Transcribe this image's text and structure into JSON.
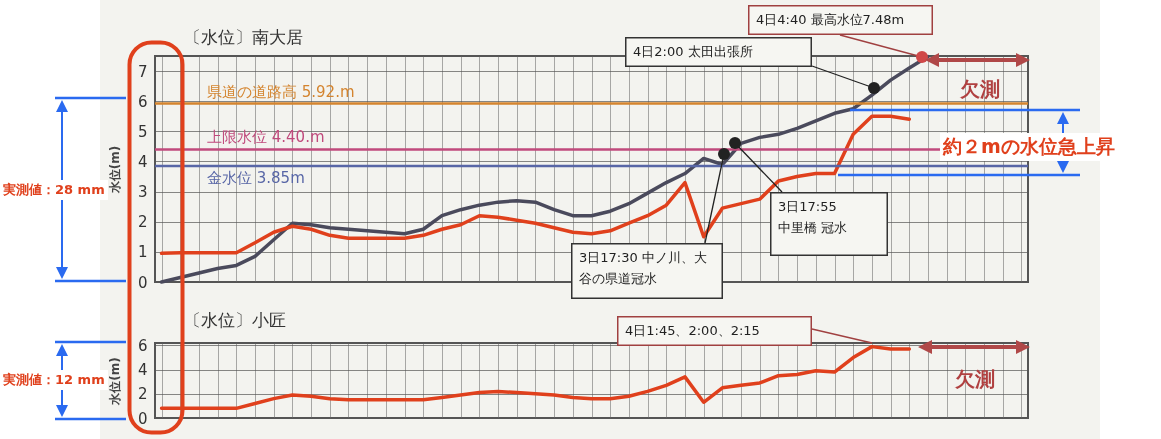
{
  "chart_data": [
    {
      "type": "line",
      "title": "〔水位〕南大居",
      "ylabel": "水位(m)",
      "categories": [
        null,
        null,
        null,
        null,
        null,
        null,
        null,
        null,
        null,
        null,
        null,
        null,
        null,
        null,
        null,
        null,
        null,
        null,
        null,
        null,
        null,
        null,
        null,
        null,
        null,
        null,
        null,
        null,
        null,
        null,
        null,
        null,
        null,
        null,
        null,
        null,
        null,
        null,
        null,
        null,
        null,
        null,
        null,
        null,
        null,
        null,
        null
      ],
      "series": [
        {
          "color": "#4a4a5c",
          "values": [
            0,
            0.15,
            0.3,
            0.45,
            0.55,
            0.85,
            1.4,
            1.95,
            1.9,
            1.8,
            1.75,
            1.7,
            1.65,
            1.6,
            1.75,
            2.2,
            2.4,
            2.55,
            2.65,
            2.7,
            2.65,
            2.4,
            2.2,
            2.2,
            2.35,
            2.6,
            2.95,
            3.3,
            3.6,
            4.1,
            3.9,
            4.6,
            4.8,
            4.9,
            5.1,
            5.35,
            5.6,
            5.75,
            6.2,
            6.7,
            7.1,
            7.48,
            null,
            null,
            null,
            null,
            null
          ]
        },
        {
          "color": "#e0401c",
          "values": [
            0.95,
            0.97,
            0.97,
            0.97,
            0.97,
            1.3,
            1.65,
            1.85,
            1.75,
            1.55,
            1.45,
            1.45,
            1.45,
            1.45,
            1.55,
            1.75,
            1.9,
            2.2,
            2.15,
            2.05,
            1.95,
            1.8,
            1.65,
            1.6,
            1.7,
            1.95,
            2.2,
            2.55,
            3.3,
            1.5,
            2.45,
            2.6,
            2.75,
            3.35,
            3.5,
            3.6,
            3.6,
            4.9,
            5.5,
            5.5,
            5.4,
            null,
            null,
            null,
            null,
            null,
            null
          ]
        }
      ],
      "ylim": [
        0,
        7.5
      ],
      "yticks": [
        0,
        1,
        2,
        3,
        4,
        5,
        6,
        7
      ],
      "grid": true,
      "tick_labels": "y",
      "ref_lines": [
        {
          "axis": "y",
          "value": 5.92,
          "label": "県道の道路高 5.92.m",
          "color": "#d4842e"
        },
        {
          "axis": "y",
          "value": 4.4,
          "label": "上限水位 4.40.m",
          "color": "#c04a7c"
        },
        {
          "axis": "y",
          "value": 3.85,
          "label": "金水位 3.85m",
          "color": "#5866a6"
        }
      ],
      "annotations": [
        "4日4:40 最高水位7.48m",
        "4日2:00 太田出張所",
        "3日17:30 中ノ川、大谷の県道冠水",
        "3日17:55中里橋 冠水",
        "欠測",
        "約２mの水位急上昇",
        "実測値：28 mm"
      ]
    },
    {
      "type": "line",
      "title": "〔水位〕小匠",
      "ylabel": "水位(m)",
      "categories": [
        null,
        null,
        null,
        null,
        null,
        null,
        null,
        null,
        null,
        null,
        null,
        null,
        null,
        null,
        null,
        null,
        null,
        null,
        null,
        null,
        null,
        null,
        null,
        null,
        null,
        null,
        null,
        null,
        null,
        null,
        null,
        null,
        null,
        null,
        null,
        null,
        null,
        null,
        null,
        null,
        null,
        null,
        null,
        null,
        null,
        null,
        null
      ],
      "series": [
        {
          "color": "#e0401c",
          "values": [
            0.8,
            0.8,
            0.8,
            0.8,
            0.8,
            1.2,
            1.6,
            1.9,
            1.8,
            1.6,
            1.5,
            1.5,
            1.5,
            1.5,
            1.5,
            1.7,
            1.9,
            2.1,
            2.2,
            2.1,
            2.0,
            1.9,
            1.7,
            1.6,
            1.6,
            1.8,
            2.2,
            2.7,
            3.4,
            1.3,
            2.5,
            2.7,
            2.9,
            3.5,
            3.6,
            3.9,
            3.8,
            5.0,
            5.9,
            5.7,
            5.7,
            null,
            null,
            null,
            null,
            null,
            null
          ]
        }
      ],
      "ylim": [
        0,
        6.2
      ],
      "yticks": [
        0,
        2,
        4,
        6
      ],
      "grid": true,
      "tick_labels": "y",
      "annotations": [
        "4日1:45、2:00、2:15",
        "欠測",
        "実測値：12 mm"
      ]
    }
  ]
}
